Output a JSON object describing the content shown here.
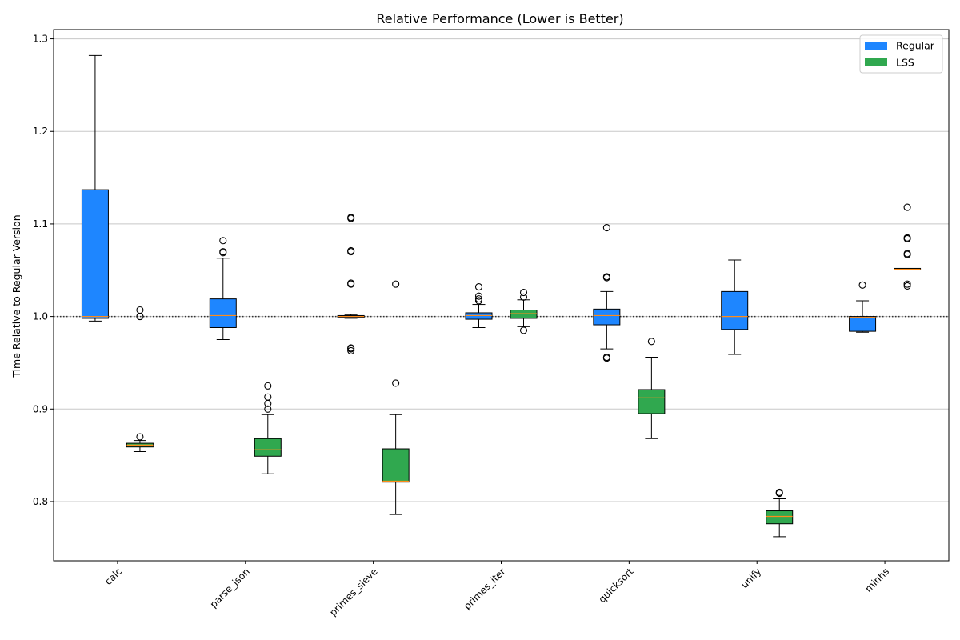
{
  "chart_data": {
    "type": "boxplot",
    "title": "Relative Performance (Lower is Better)",
    "xlabel": "",
    "ylabel": "Time Relative to Regular Version",
    "ylim": [
      0.736,
      1.31
    ],
    "yticks": [
      0.8,
      0.9,
      1.0,
      1.1,
      1.2,
      1.3
    ],
    "ytick_labels": [
      "0.8",
      "0.9",
      "1.0",
      "1.1",
      "1.2",
      "1.3"
    ],
    "reference_line": 1.0,
    "grid": "y",
    "legend_position": "top-right",
    "categories": [
      "calc",
      "parse_json",
      "primes_sieve",
      "primes_iter",
      "quicksort",
      "unify",
      "minhs"
    ],
    "series": [
      {
        "name": "Regular",
        "color": "#1e86ff",
        "boxes": [
          {
            "whislo": 0.995,
            "q1": 0.998,
            "med": 1.0,
            "q3": 1.137,
            "whishi": 1.282,
            "fliers": []
          },
          {
            "whislo": 0.975,
            "q1": 0.988,
            "med": 1.001,
            "q3": 1.019,
            "whishi": 1.063,
            "fliers": [
              1.069,
              1.07,
              1.082
            ]
          },
          {
            "whislo": 0.998,
            "q1": 0.999,
            "med": 1.0,
            "q3": 1.001,
            "whishi": 1.002,
            "fliers": [
              0.963,
              0.965,
              0.966,
              1.035,
              1.036,
              1.07,
              1.071,
              1.106,
              1.107
            ]
          },
          {
            "whislo": 0.988,
            "q1": 0.997,
            "med": 1.001,
            "q3": 1.004,
            "whishi": 1.013,
            "fliers": [
              1.017,
              1.019,
              1.022,
              1.032
            ]
          },
          {
            "whislo": 0.965,
            "q1": 0.991,
            "med": 1.001,
            "q3": 1.008,
            "whishi": 1.027,
            "fliers": [
              0.955,
              0.956,
              1.042,
              1.043,
              1.096
            ]
          },
          {
            "whislo": 0.959,
            "q1": 0.986,
            "med": 1.0,
            "q3": 1.027,
            "whishi": 1.061,
            "fliers": []
          },
          {
            "whislo": 0.983,
            "q1": 0.984,
            "med": 0.999,
            "q3": 1.0,
            "whishi": 1.017,
            "fliers": [
              1.034
            ]
          }
        ]
      },
      {
        "name": "LSS",
        "color": "#30a84f",
        "boxes": [
          {
            "whislo": 0.854,
            "q1": 0.859,
            "med": 0.861,
            "q3": 0.863,
            "whishi": 0.866,
            "fliers": [
              0.87,
              1.0,
              1.007
            ]
          },
          {
            "whislo": 0.83,
            "q1": 0.849,
            "med": 0.856,
            "q3": 0.868,
            "whishi": 0.894,
            "fliers": [
              0.9,
              0.906,
              0.913,
              0.925
            ]
          },
          {
            "whislo": 0.786,
            "q1": 0.821,
            "med": 0.822,
            "q3": 0.857,
            "whishi": 0.894,
            "fliers": [
              0.928,
              1.035
            ]
          },
          {
            "whislo": 0.989,
            "q1": 0.998,
            "med": 1.003,
            "q3": 1.007,
            "whishi": 1.018,
            "fliers": [
              0.985,
              1.021,
              1.026
            ]
          },
          {
            "whislo": 0.868,
            "q1": 0.895,
            "med": 0.912,
            "q3": 0.921,
            "whishi": 0.956,
            "fliers": [
              0.973
            ]
          },
          {
            "whislo": 0.762,
            "q1": 0.776,
            "med": 0.784,
            "q3": 0.79,
            "whishi": 0.803,
            "fliers": [
              0.809,
              0.81
            ]
          },
          {
            "whislo": 1.051,
            "q1": 1.051,
            "med": 1.051,
            "q3": 1.052,
            "whishi": 1.052,
            "fliers": [
              1.033,
              1.035,
              1.067,
              1.068,
              1.084,
              1.085,
              1.118
            ]
          }
        ]
      }
    ]
  }
}
